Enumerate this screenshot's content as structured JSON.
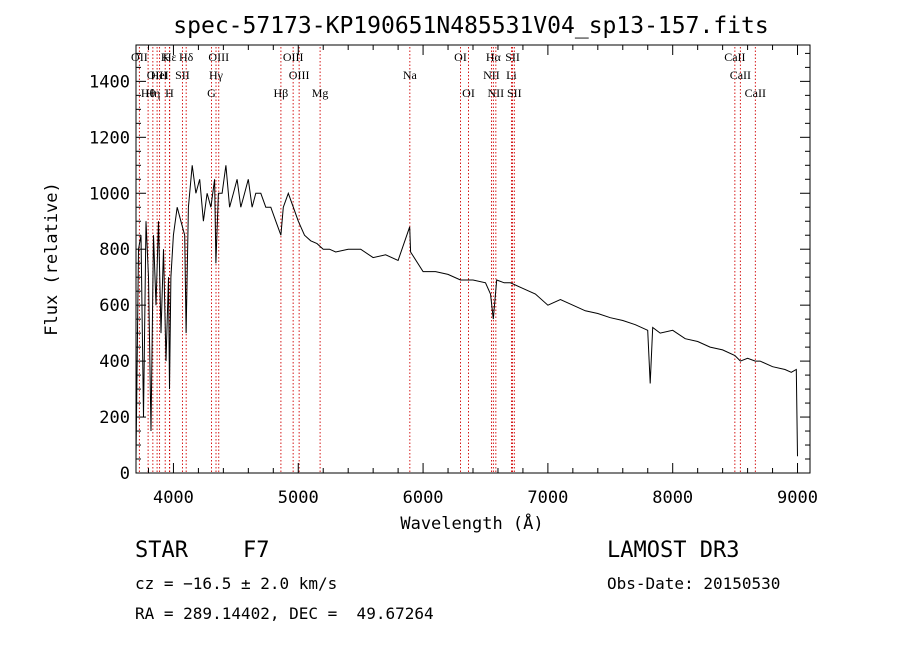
{
  "chart_data": {
    "type": "line",
    "title": "spec-57173-KP190651N485531V04_sp13-157.fits",
    "xlabel": "Wavelength (Å)",
    "ylabel": "Flux (relative)",
    "xlim": [
      3700,
      9100
    ],
    "ylim": [
      0,
      1530
    ],
    "xticks": [
      4000,
      5000,
      6000,
      7000,
      8000,
      9000
    ],
    "xtick_labels": [
      "4000",
      "5000",
      "6000",
      "7000",
      "8000",
      "9000"
    ],
    "yticks": [
      0,
      200,
      400,
      600,
      800,
      1000,
      1200,
      1400
    ],
    "ytick_labels": [
      "0",
      "200",
      "400",
      "600",
      "800",
      "1000",
      "1200",
      "1400"
    ],
    "series": [
      {
        "name": "Flux",
        "x": [
          3700,
          3720,
          3740,
          3760,
          3780,
          3800,
          3820,
          3840,
          3860,
          3880,
          3900,
          3920,
          3940,
          3960,
          3968,
          3980,
          4000,
          4030,
          4060,
          4090,
          4101,
          4120,
          4150,
          4180,
          4210,
          4240,
          4270,
          4300,
          4330,
          4340,
          4360,
          4390,
          4420,
          4450,
          4480,
          4510,
          4540,
          4570,
          4600,
          4630,
          4660,
          4700,
          4740,
          4780,
          4820,
          4861,
          4880,
          4920,
          4960,
          5000,
          5050,
          5100,
          5150,
          5200,
          5250,
          5300,
          5400,
          5500,
          5600,
          5700,
          5800,
          5893,
          5900,
          6000,
          6100,
          6200,
          6300,
          6400,
          6500,
          6540,
          6563,
          6590,
          6650,
          6700,
          6800,
          6900,
          7000,
          7100,
          7200,
          7300,
          7400,
          7500,
          7600,
          7700,
          7800,
          7820,
          7840,
          7900,
          8000,
          8100,
          8200,
          8300,
          8400,
          8498,
          8542,
          8600,
          8662,
          8700,
          8800,
          8900,
          8950,
          8990,
          9000
        ],
        "y": [
          50,
          800,
          850,
          200,
          900,
          700,
          150,
          850,
          600,
          900,
          500,
          800,
          400,
          700,
          300,
          700,
          850,
          950,
          900,
          850,
          500,
          950,
          1100,
          1000,
          1050,
          900,
          1000,
          950,
          1050,
          750,
          1000,
          1000,
          1100,
          950,
          1000,
          1050,
          950,
          1000,
          1050,
          950,
          1000,
          1000,
          950,
          950,
          900,
          850,
          950,
          1000,
          950,
          900,
          850,
          830,
          820,
          800,
          800,
          790,
          800,
          800,
          770,
          780,
          760,
          880,
          790,
          720,
          720,
          710,
          690,
          690,
          680,
          640,
          550,
          690,
          680,
          680,
          660,
          640,
          600,
          620,
          600,
          580,
          570,
          555,
          545,
          530,
          510,
          320,
          520,
          500,
          510,
          480,
          470,
          450,
          440,
          420,
          400,
          410,
          400,
          400,
          380,
          370,
          360,
          370,
          60
        ]
      }
    ],
    "lines": [
      {
        "name": "Hθ",
        "x": 3797
      },
      {
        "name": "OII",
        "x": 3727
      },
      {
        "name": "Hη",
        "x": 3835
      },
      {
        "name": "OIII",
        "x": 3869
      },
      {
        "name": "HeI",
        "x": 3889
      },
      {
        "name": "K",
        "x": 3934
      },
      {
        "name": "H",
        "x": 3968
      },
      {
        "name": "Hε",
        "x": 3970
      },
      {
        "name": "SII",
        "x": 4072
      },
      {
        "name": "Hδ",
        "x": 4102
      },
      {
        "name": "G",
        "x": 4305
      },
      {
        "name": "Hγ",
        "x": 4341
      },
      {
        "name": "OIII",
        "x": 4363
      },
      {
        "name": "Hβ",
        "x": 4861
      },
      {
        "name": "OIII",
        "x": 4959
      },
      {
        "name": "OIII",
        "x": 5007
      },
      {
        "name": "Mg",
        "x": 5175
      },
      {
        "name": "Na",
        "x": 5894
      },
      {
        "name": "OI",
        "x": 6300
      },
      {
        "name": "OI",
        "x": 6364
      },
      {
        "name": "NII",
        "x": 6548
      },
      {
        "name": "Hα",
        "x": 6563
      },
      {
        "name": "NII",
        "x": 6583
      },
      {
        "name": "Li",
        "x": 6708
      },
      {
        "name": "SII",
        "x": 6717
      },
      {
        "name": "SII",
        "x": 6731
      },
      {
        "name": "CaII",
        "x": 8498
      },
      {
        "name": "CaII",
        "x": 8542
      },
      {
        "name": "CaII",
        "x": 8662
      }
    ]
  },
  "info": {
    "class": "STAR",
    "subclass": "F7",
    "survey": "LAMOST DR3",
    "cz": "cz = −16.5 ± 2.0 km/s",
    "obs_date": "Obs-Date: 20150530",
    "coords": "RA = 289.14402, DEC =  49.67264"
  },
  "colors": {
    "line_marker": "#d00000",
    "spectrum": "#000000"
  }
}
